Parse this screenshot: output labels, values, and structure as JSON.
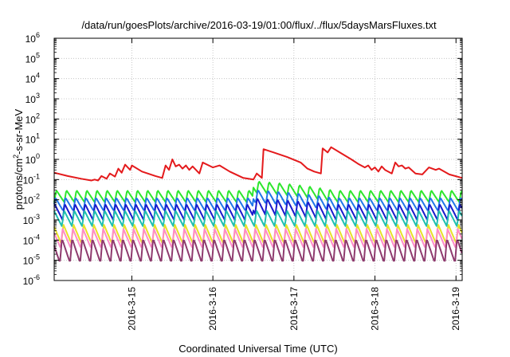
{
  "chart_data": {
    "type": "line",
    "title": "/data/run/goesPlots/archive/2016-03-19/01:00/flux/../flux/5daysMarsFluxes.txt",
    "xlabel": "Coordinated Universal Time (UTC)",
    "ylabel": {
      "pre": "protons/cm",
      "sup": "2",
      "post": "-s-sr-MeV"
    },
    "x_range": [
      "2016-03-14T01:00",
      "2016-03-19T01:50"
    ],
    "x_tick_labels": [
      {
        "date": "2016-03-15",
        "label": "2016-3-15"
      },
      {
        "date": "2016-03-16",
        "label": "2016-3-16"
      },
      {
        "date": "2016-03-17",
        "label": "2016-3-17"
      },
      {
        "date": "2016-03-18",
        "label": "2016-3-18"
      },
      {
        "date": "2016-03-19",
        "label": "2016-3-19"
      }
    ],
    "y_scale": "log",
    "y_range": [
      1e-06,
      1000000.0
    ],
    "y_tick_labels": [
      {
        "base": "10",
        "exp": "-6"
      },
      {
        "base": "10",
        "exp": "-5"
      },
      {
        "base": "10",
        "exp": "-4"
      },
      {
        "base": "10",
        "exp": "-3"
      },
      {
        "base": "10",
        "exp": "-2"
      },
      {
        "base": "10",
        "exp": "-1"
      },
      {
        "base": "10",
        "exp": "0"
      },
      {
        "base": "10",
        "exp": "1"
      },
      {
        "base": "10",
        "exp": "2"
      },
      {
        "base": "10",
        "exp": "3"
      },
      {
        "base": "10",
        "exp": "4"
      },
      {
        "base": "10",
        "exp": "5"
      },
      {
        "base": "10",
        "exp": "6"
      }
    ],
    "grid": true,
    "legend": "none",
    "series": [
      {
        "color": "#e41a1c",
        "points": [
          [
            "2016-03-14T01:00",
            0.22
          ],
          [
            "2016-03-14T05:00",
            0.15
          ],
          [
            "2016-03-14T09:00",
            0.11
          ],
          [
            "2016-03-14T12:00",
            0.09
          ],
          [
            "2016-03-14T13:00",
            0.1
          ],
          [
            "2016-03-14T14:00",
            0.09
          ],
          [
            "2016-03-14T15:00",
            0.15
          ],
          [
            "2016-03-14T16:30",
            0.11
          ],
          [
            "2016-03-14T17:30",
            0.2
          ],
          [
            "2016-03-14T19:00",
            0.14
          ],
          [
            "2016-03-14T20:00",
            0.35
          ],
          [
            "2016-03-14T21:00",
            0.22
          ],
          [
            "2016-03-14T22:00",
            0.55
          ],
          [
            "2016-03-14T23:30",
            0.3
          ],
          [
            "2016-03-15T00:00",
            0.5
          ],
          [
            "2016-03-15T03:00",
            0.25
          ],
          [
            "2016-03-15T07:00",
            0.15
          ],
          [
            "2016-03-15T09:00",
            0.12
          ],
          [
            "2016-03-15T10:00",
            0.5
          ],
          [
            "2016-03-15T11:00",
            0.3
          ],
          [
            "2016-03-15T12:00",
            1.0
          ],
          [
            "2016-03-15T13:00",
            0.45
          ],
          [
            "2016-03-15T14:00",
            0.55
          ],
          [
            "2016-03-15T15:00",
            0.35
          ],
          [
            "2016-03-15T16:00",
            0.5
          ],
          [
            "2016-03-15T17:00",
            0.3
          ],
          [
            "2016-03-15T18:00",
            0.45
          ],
          [
            "2016-03-15T20:00",
            0.2
          ],
          [
            "2016-03-15T21:00",
            0.7
          ],
          [
            "2016-03-16T00:00",
            0.4
          ],
          [
            "2016-03-16T02:00",
            0.5
          ],
          [
            "2016-03-16T05:00",
            0.25
          ],
          [
            "2016-03-16T09:00",
            0.12
          ],
          [
            "2016-03-16T12:00",
            0.1
          ],
          [
            "2016-03-16T13:00",
            0.2
          ],
          [
            "2016-03-16T14:30",
            0.12
          ],
          [
            "2016-03-16T15:00",
            3.2
          ],
          [
            "2016-03-16T18:00",
            2.2
          ],
          [
            "2016-03-16T22:00",
            1.3
          ],
          [
            "2016-03-17T02:00",
            0.7
          ],
          [
            "2016-03-17T04:00",
            0.35
          ],
          [
            "2016-03-17T06:00",
            0.25
          ],
          [
            "2016-03-17T08:00",
            0.2
          ],
          [
            "2016-03-17T08:30",
            3.5
          ],
          [
            "2016-03-17T10:00",
            2.2
          ],
          [
            "2016-03-17T11:00",
            4.0
          ],
          [
            "2016-03-17T14:00",
            2.0
          ],
          [
            "2016-03-17T17:00",
            1.0
          ],
          [
            "2016-03-17T19:00",
            0.6
          ],
          [
            "2016-03-17T21:00",
            0.4
          ],
          [
            "2016-03-17T22:00",
            0.5
          ],
          [
            "2016-03-17T23:00",
            0.3
          ],
          [
            "2016-03-18T00:00",
            0.4
          ],
          [
            "2016-03-18T01:00",
            0.25
          ],
          [
            "2016-03-18T02:00",
            0.45
          ],
          [
            "2016-03-18T03:00",
            0.3
          ],
          [
            "2016-03-18T05:00",
            0.2
          ],
          [
            "2016-03-18T06:00",
            0.7
          ],
          [
            "2016-03-18T07:00",
            0.45
          ],
          [
            "2016-03-18T08:00",
            0.5
          ],
          [
            "2016-03-18T09:00",
            0.35
          ],
          [
            "2016-03-18T10:00",
            0.4
          ],
          [
            "2016-03-18T12:00",
            0.2
          ],
          [
            "2016-03-18T14:00",
            0.18
          ],
          [
            "2016-03-18T16:00",
            0.4
          ],
          [
            "2016-03-18T18:00",
            0.3
          ],
          [
            "2016-03-18T19:00",
            0.35
          ],
          [
            "2016-03-18T22:00",
            0.18
          ],
          [
            "2016-03-19T01:50",
            0.12
          ]
        ]
      },
      {
        "color": "#2de62d",
        "sawtooth": {
          "base": 0.015,
          "amplitude": 2.0,
          "period_hours": 3.0,
          "phase": 0.0,
          "dip_hours": 0.6,
          "bumps": [
            [
              "2016-03-16T12:00",
              "2016-03-17T12:00",
              3.0
            ]
          ]
        }
      },
      {
        "color": "#1f77e8",
        "sawtooth": {
          "base": 0.006,
          "amplitude": 2.2,
          "period_hours": 3.0,
          "phase": 0.3,
          "dip_hours": 0.6,
          "bumps": [
            [
              "2016-03-16T12:00",
              "2016-03-17T12:00",
              2.5
            ]
          ]
        }
      },
      {
        "color": "#1a1acc",
        "sawtooth": {
          "base": 0.0025,
          "amplitude": 2.5,
          "period_hours": 3.0,
          "phase": 0.5,
          "dip_hours": 0.6,
          "bumps": [
            [
              "2016-03-16T12:00",
              "2016-03-17T12:00",
              2.0
            ]
          ]
        }
      },
      {
        "color": "#20c0b0",
        "sawtooth": {
          "base": 0.0012,
          "amplitude": 2.5,
          "period_hours": 3.0,
          "phase": 0.7,
          "dip_hours": 0.6,
          "bumps": []
        }
      },
      {
        "color": "#e8e02a",
        "sawtooth": {
          "base": 0.0002,
          "amplitude": 3.0,
          "period_hours": 3.0,
          "phase": 0.9,
          "dip_hours": 0.6,
          "bumps": []
        }
      },
      {
        "color": "#ff8cc8",
        "sawtooth": {
          "base": 0.00012,
          "amplitude": 3.0,
          "period_hours": 3.0,
          "phase": 1.1,
          "dip_hours": 0.6,
          "bumps": []
        }
      },
      {
        "color": "#8e3a6e",
        "sawtooth": {
          "base": 3e-05,
          "amplitude": 4.0,
          "period_hours": 3.0,
          "phase": 1.3,
          "dip_hours": 0.6,
          "bumps": []
        }
      }
    ]
  }
}
